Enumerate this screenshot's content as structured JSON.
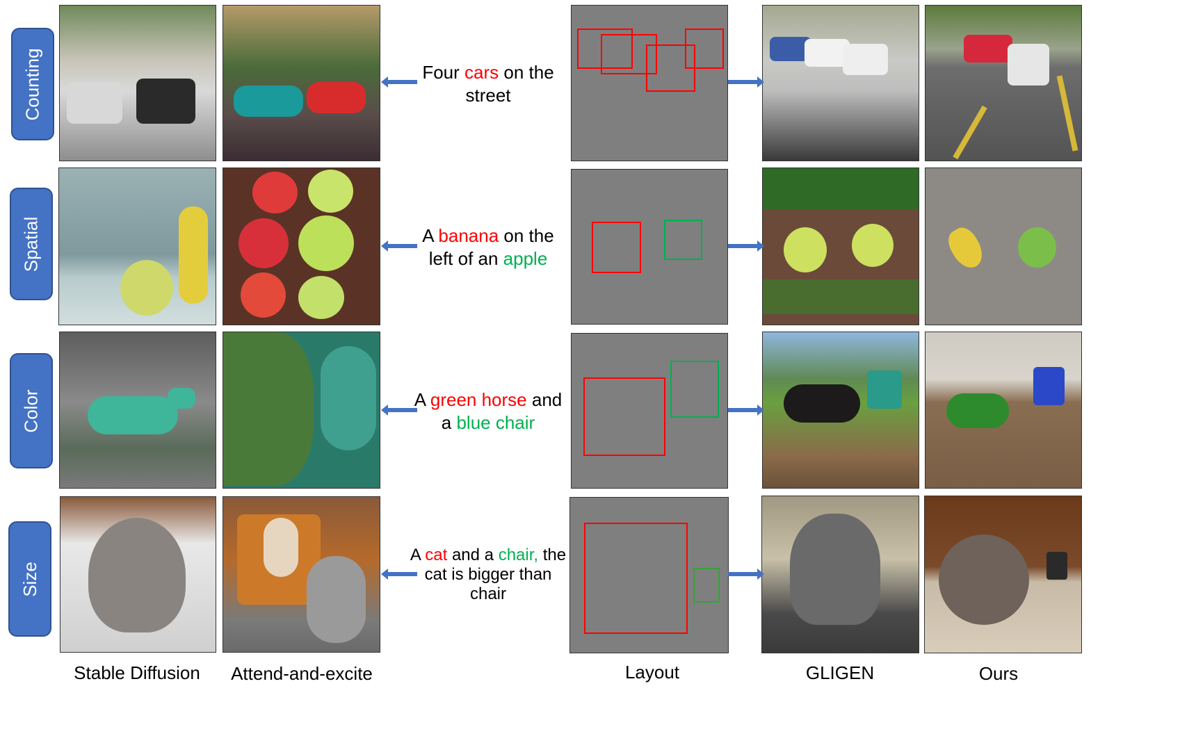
{
  "rows": [
    {
      "category": "Counting",
      "prompt": [
        {
          "t": "Four ",
          "c": ""
        },
        {
          "t": "cars",
          "c": "red"
        },
        {
          "t": " on the street",
          "c": ""
        }
      ]
    },
    {
      "category": "Spatial",
      "prompt": [
        {
          "t": "A ",
          "c": ""
        },
        {
          "t": "banana",
          "c": "red"
        },
        {
          "t": " on the left of an ",
          "c": ""
        },
        {
          "t": "apple",
          "c": "green"
        }
      ]
    },
    {
      "category": "Color",
      "prompt": [
        {
          "t": "A ",
          "c": ""
        },
        {
          "t": "green horse",
          "c": "red"
        },
        {
          "t": " and a ",
          "c": ""
        },
        {
          "t": "blue chair",
          "c": "green"
        }
      ]
    },
    {
      "category": "Size",
      "prompt": [
        {
          "t": "A ",
          "c": ""
        },
        {
          "t": "cat",
          "c": "red"
        },
        {
          "t": " and a ",
          "c": ""
        },
        {
          "t": "chair,",
          "c": "green"
        },
        {
          "t": " the cat is bigger than chair",
          "c": ""
        }
      ]
    }
  ],
  "columns": [
    "Stable Diffusion",
    "Attend-and-excite",
    "Layout",
    "GLIGEN",
    "Ours"
  ],
  "colors": {
    "red": "#ff0000",
    "green": "#00b050",
    "tag": "#4472c4",
    "arrow": "#4472c4",
    "layout_bg": "#7f7f7f"
  }
}
